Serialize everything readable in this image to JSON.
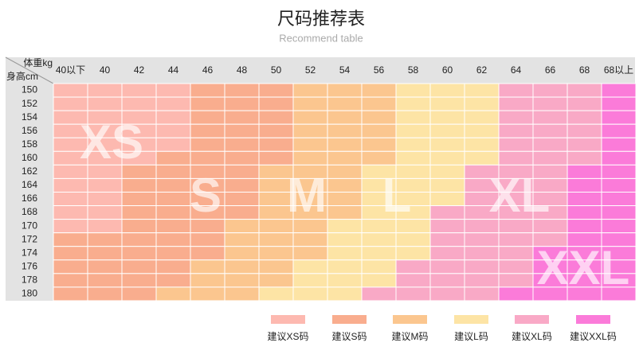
{
  "header": {
    "title": "尺码推荐表",
    "subtitle": "Recommend table"
  },
  "table": {
    "weight_label": "体重kg",
    "height_label": "身高cm",
    "weights": [
      "40以下",
      "40",
      "42",
      "44",
      "46",
      "48",
      "50",
      "52",
      "54",
      "56",
      "58",
      "60",
      "62",
      "64",
      "66",
      "68",
      "68以上"
    ],
    "heights": [
      "150",
      "152",
      "154",
      "156",
      "158",
      "160",
      "162",
      "164",
      "166",
      "168",
      "170",
      "172",
      "174",
      "176",
      "178",
      "180"
    ],
    "rows": [
      [
        "XS",
        "XS",
        "XS",
        "XS",
        "S",
        "S",
        "S",
        "M",
        "M",
        "M",
        "L",
        "L",
        "L",
        "XL",
        "XL",
        "XL",
        "XXL"
      ],
      [
        "XS",
        "XS",
        "XS",
        "XS",
        "S",
        "S",
        "S",
        "M",
        "M",
        "M",
        "L",
        "L",
        "L",
        "XL",
        "XL",
        "XL",
        "XXL"
      ],
      [
        "XS",
        "XS",
        "XS",
        "XS",
        "S",
        "S",
        "S",
        "M",
        "M",
        "M",
        "L",
        "L",
        "L",
        "XL",
        "XL",
        "XL",
        "XXL"
      ],
      [
        "XS",
        "XS",
        "XS",
        "XS",
        "S",
        "S",
        "S",
        "M",
        "M",
        "M",
        "L",
        "L",
        "L",
        "XL",
        "XL",
        "XL",
        "XXL"
      ],
      [
        "XS",
        "XS",
        "XS",
        "XS",
        "S",
        "S",
        "S",
        "M",
        "M",
        "M",
        "L",
        "L",
        "L",
        "XL",
        "XL",
        "XL",
        "XXL"
      ],
      [
        "XS",
        "XS",
        "XS",
        "S",
        "S",
        "S",
        "S",
        "M",
        "M",
        "M",
        "L",
        "L",
        "L",
        "XL",
        "XL",
        "XL",
        "XXL"
      ],
      [
        "XS",
        "XS",
        "S",
        "S",
        "S",
        "S",
        "M",
        "M",
        "M",
        "L",
        "L",
        "L",
        "XL",
        "XL",
        "XL",
        "XXL",
        "XXL"
      ],
      [
        "XS",
        "XS",
        "S",
        "S",
        "S",
        "S",
        "M",
        "M",
        "M",
        "L",
        "L",
        "L",
        "XL",
        "XL",
        "XL",
        "XXL",
        "XXL"
      ],
      [
        "XS",
        "XS",
        "S",
        "S",
        "S",
        "S",
        "M",
        "M",
        "M",
        "L",
        "L",
        "L",
        "XL",
        "XL",
        "XL",
        "XXL",
        "XXL"
      ],
      [
        "XS",
        "XS",
        "S",
        "S",
        "S",
        "S",
        "M",
        "M",
        "M",
        "L",
        "L",
        "XL",
        "XL",
        "XL",
        "XL",
        "XXL",
        "XXL"
      ],
      [
        "XS",
        "XS",
        "S",
        "S",
        "S",
        "M",
        "M",
        "M",
        "L",
        "L",
        "L",
        "XL",
        "XL",
        "XL",
        "XL",
        "XXL",
        "XXL"
      ],
      [
        "S",
        "S",
        "S",
        "S",
        "S",
        "M",
        "M",
        "M",
        "L",
        "L",
        "L",
        "XL",
        "XL",
        "XL",
        "XL",
        "XXL",
        "XXL"
      ],
      [
        "S",
        "S",
        "S",
        "S",
        "S",
        "M",
        "M",
        "M",
        "L",
        "L",
        "L",
        "XL",
        "XL",
        "XL",
        "XXL",
        "XXL",
        "XXL"
      ],
      [
        "S",
        "S",
        "S",
        "S",
        "M",
        "M",
        "M",
        "L",
        "L",
        "L",
        "XL",
        "XL",
        "XL",
        "XL",
        "XXL",
        "XXL",
        "XXL"
      ],
      [
        "S",
        "S",
        "S",
        "S",
        "M",
        "M",
        "M",
        "L",
        "L",
        "L",
        "XL",
        "XL",
        "XL",
        "XL",
        "XXL",
        "XXL",
        "XXL"
      ],
      [
        "S",
        "S",
        "S",
        "M",
        "M",
        "M",
        "L",
        "L",
        "L",
        "XL",
        "XL",
        "XL",
        "XL",
        "XXL",
        "XXL",
        "XXL",
        "XXL"
      ]
    ]
  },
  "sizes": [
    {
      "key": "XS",
      "color": "#fdb9b0",
      "legend": "建议XS码"
    },
    {
      "key": "S",
      "color": "#f9ad8e",
      "legend": "建议S码"
    },
    {
      "key": "M",
      "color": "#fbc68f",
      "legend": "建议M码"
    },
    {
      "key": "L",
      "color": "#fde4a5",
      "legend": "建议L码"
    },
    {
      "key": "XL",
      "color": "#f9a9c6",
      "legend": "建议XL码"
    },
    {
      "key": "XXL",
      "color": "#fb7bd9",
      "legend": "建议XXL码"
    }
  ]
}
